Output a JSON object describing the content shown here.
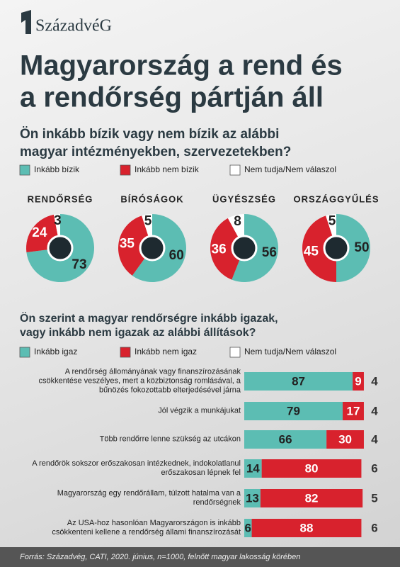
{
  "logo": "SzázadvéG",
  "title": [
    "Magyarország a rend és",
    "a rendőrség pártján áll"
  ],
  "source": "Forrás: Századvég, CATI, 2020. június, n=1000, felnőtt magyar lakosság körében",
  "chart_data": [
    {
      "type": "pie",
      "title": [
        "Ön inkább bízik vagy nem bízik az  alábbi",
        "magyar intézményekben, szervezetekben?"
      ],
      "categories": [
        "RENDŐRSÉG",
        "BÍRÓSÁGOK",
        "ÜGYÉSZSÉG",
        "ORSZÁGGYŰLÉS"
      ],
      "series": [
        {
          "name": "Inkább bízik",
          "color": "#5cbdb3",
          "values": [
            73,
            60,
            56,
            50
          ]
        },
        {
          "name": "Inkább nem bízik",
          "color": "#d8222d",
          "values": [
            24,
            35,
            36,
            45
          ]
        },
        {
          "name": "Nem tudja/Nem válaszol",
          "color": "#ffffff",
          "values": [
            3,
            5,
            8,
            5
          ]
        }
      ]
    },
    {
      "type": "bar",
      "title": [
        "Ön szerint a magyar rendőrségre inkább igazak,",
        "vagy inkább nem igazak az alábbi állítások?"
      ],
      "categories": [
        "A rendőrség állományának vagy finanszírozásának  csökkentése veszélyes, mert a közbiztonság romlásával, a bűnözés fokozottabb elterjedésével járna",
        "Jól végzik a munkájukat",
        "Több rendőrre lenne szükség az utcákon",
        "A rendőrök sokszor erőszakosan intézkednek, indokolatlanul erőszakosan lépnek fel",
        "Magyarország egy rendőrállam, túlzott hatalma van a rendőrségnek",
        "Az USA-hoz hasonlóan Magyarországon is inkább csökkenteni kellene a rendőrség állami finanszírozását"
      ],
      "series": [
        {
          "name": "Inkább igaz",
          "color": "#5cbdb3",
          "values": [
            87,
            79,
            66,
            14,
            13,
            6
          ]
        },
        {
          "name": "Inkább nem igaz",
          "color": "#d8222d",
          "values": [
            9,
            17,
            30,
            80,
            82,
            88
          ]
        },
        {
          "name": "Nem tudja/Nem válaszol",
          "color": "#ffffff",
          "values": [
            4,
            4,
            4,
            6,
            5,
            6
          ]
        }
      ]
    }
  ]
}
